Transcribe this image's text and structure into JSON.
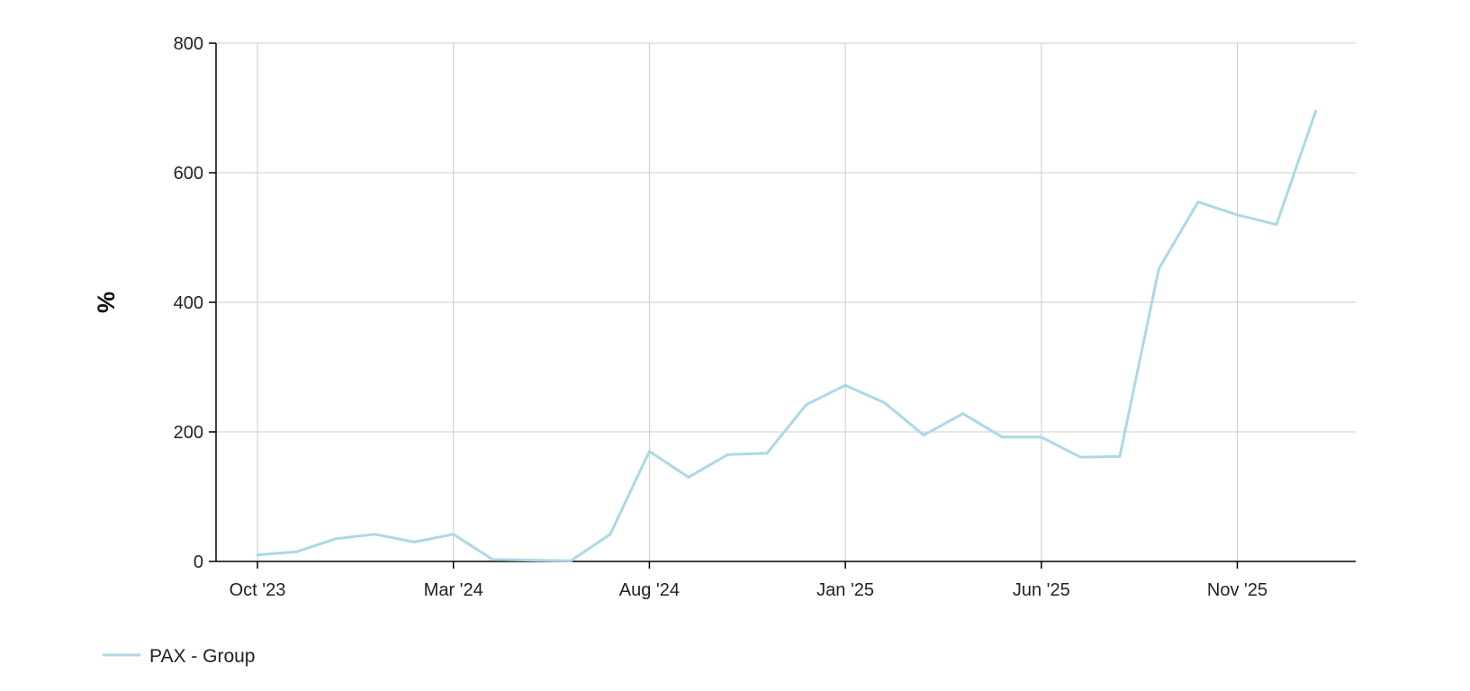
{
  "chart_data": {
    "type": "line",
    "title": "",
    "xlabel": "",
    "ylabel": "%",
    "ylim": [
      0,
      800
    ],
    "y_ticks": [
      0,
      200,
      400,
      600,
      800
    ],
    "x_ticks": [
      "Oct '23",
      "Mar '24",
      "Aug '24",
      "Jan '25",
      "Jun '25",
      "Nov '25"
    ],
    "x_range": [
      "2023-10",
      "2026-02"
    ],
    "grid": true,
    "legend_position": "bottom-left",
    "colors": {
      "series": "#add8e6",
      "grid": "#cccccc",
      "axis": "#000000"
    },
    "series": [
      {
        "name": "PAX - Group",
        "x": [
          "2023-10",
          "2023-11",
          "2023-12",
          "2024-01",
          "2024-02",
          "2024-03",
          "2024-04",
          "2024-05",
          "2024-06",
          "2024-07",
          "2024-08",
          "2024-09",
          "2024-10",
          "2024-11",
          "2024-12",
          "2025-01",
          "2025-02",
          "2025-03",
          "2025-04",
          "2025-05",
          "2025-06",
          "2025-07",
          "2025-08",
          "2025-09",
          "2025-10",
          "2025-11",
          "2025-12",
          "2026-01"
        ],
        "values": [
          10,
          15,
          35,
          42,
          30,
          42,
          3,
          2,
          1,
          42,
          170,
          130,
          165,
          167,
          242,
          272,
          245,
          195,
          228,
          192,
          192,
          161,
          162,
          452,
          555,
          535,
          520,
          695
        ]
      }
    ]
  }
}
